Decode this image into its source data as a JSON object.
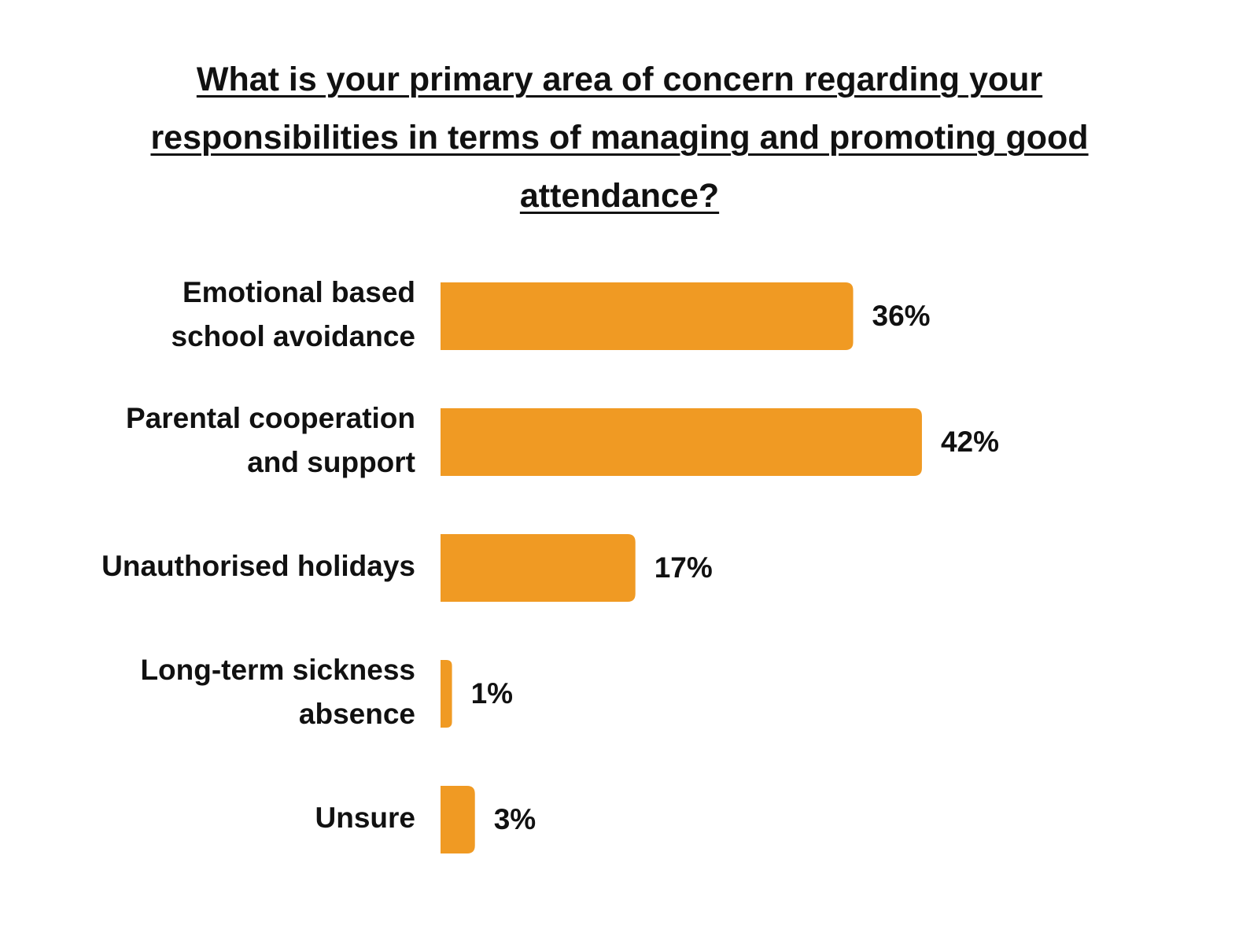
{
  "chart_data": {
    "type": "bar",
    "orientation": "horizontal",
    "title": "What is your primary area of concern regarding your responsibilities in terms of managing and promoting good attendance?",
    "categories": [
      "Emotional based\nschool avoidance",
      "Parental cooperation\nand support",
      "Unauthorised holidays",
      "Long-term sickness\nabsence",
      "Unsure"
    ],
    "values": [
      36,
      42,
      17,
      1,
      3
    ],
    "value_labels": [
      "36%",
      "42%",
      "17%",
      "1%",
      "3%"
    ],
    "color": "#f09a23"
  }
}
